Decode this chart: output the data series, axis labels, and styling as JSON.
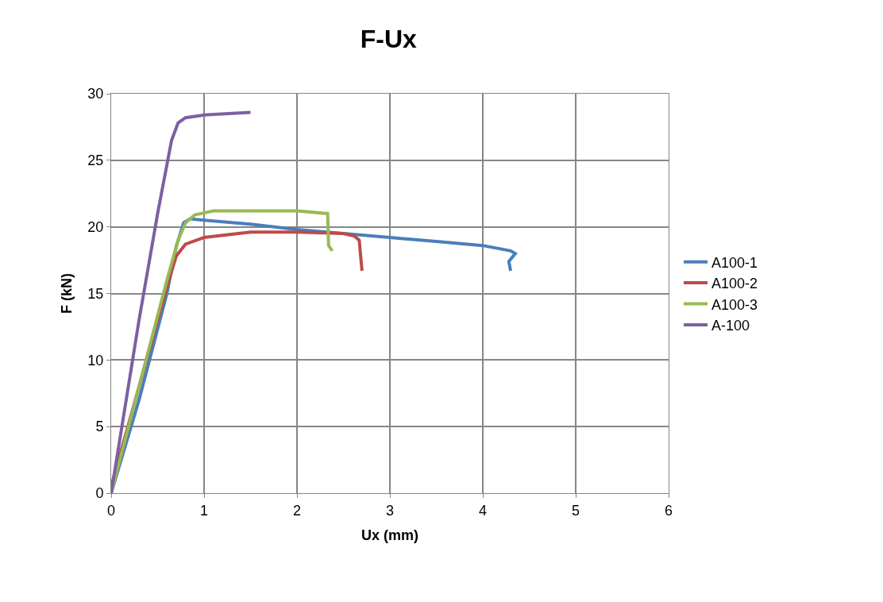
{
  "chart_data": {
    "type": "line",
    "title": "F-Ux",
    "xlabel": "Ux (mm)",
    "ylabel": "F (kN)",
    "xlim": [
      0,
      6
    ],
    "xticks": [
      0,
      1,
      2,
      3,
      4,
      5,
      6
    ],
    "ylim": [
      0,
      30
    ],
    "yticks": [
      0,
      5,
      10,
      15,
      20,
      25,
      30
    ],
    "grid": true,
    "legend": "right",
    "marker": "none",
    "line_style": "solid",
    "series": [
      {
        "name": "A100-1",
        "color": "#4a7ebb",
        "x": [
          0,
          0.3,
          0.6,
          0.7,
          0.78,
          0.85,
          1,
          1.5,
          2,
          2.5,
          3,
          3.5,
          4,
          4.3,
          4.35,
          4.28,
          4.3
        ],
        "values": [
          0,
          7,
          15,
          18.5,
          20.3,
          20.6,
          20.5,
          20.2,
          19.8,
          19.5,
          19.2,
          18.9,
          18.6,
          18.2,
          18,
          17.4,
          16.7
        ]
      },
      {
        "name": "A100-2",
        "color": "#be4b48",
        "x": [
          0,
          0.02,
          0.3,
          0.6,
          0.7,
          0.8,
          1,
          1.5,
          2,
          2.5,
          2.62,
          2.67,
          2.7
        ],
        "values": [
          0,
          1,
          8,
          15.5,
          17.8,
          18.7,
          19.2,
          19.6,
          19.6,
          19.5,
          19.3,
          19,
          16.7
        ]
      },
      {
        "name": "A100-3",
        "color": "#98b954",
        "x": [
          0,
          0.3,
          0.6,
          0.72,
          0.8,
          0.9,
          1.1,
          1.5,
          2,
          2.33,
          2.34,
          2.38
        ],
        "values": [
          0,
          8,
          16,
          19,
          20.3,
          20.9,
          21.2,
          21.2,
          21.2,
          21,
          18.6,
          18.2
        ]
      },
      {
        "name": "A-100",
        "color": "#7d60a0",
        "x": [
          0,
          0.3,
          0.5,
          0.65,
          0.72,
          0.8,
          1,
          1.5
        ],
        "values": [
          0,
          13,
          21,
          26.5,
          27.8,
          28.2,
          28.4,
          28.6
        ]
      }
    ]
  }
}
